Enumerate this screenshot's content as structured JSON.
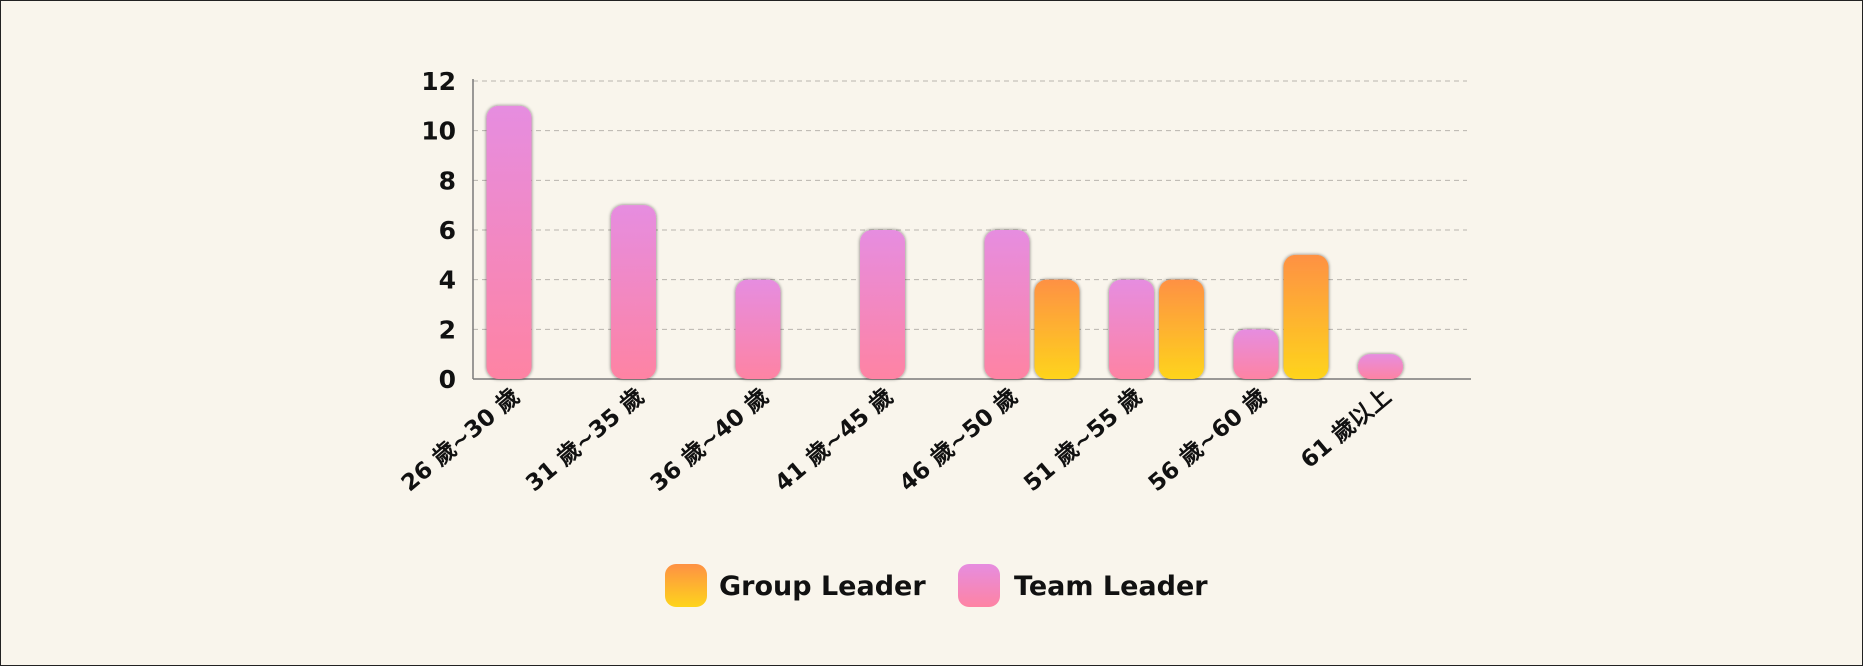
{
  "chart_data": {
    "type": "bar",
    "categories": [
      "26 歲~30 歲",
      "31 歲~35 歲",
      "36 歲~40 歲",
      "41 歲~45 歲",
      "46 歲~50 歲",
      "51 歲~55 歲",
      "56 歲~60 歲",
      "61 歲以上"
    ],
    "series": [
      {
        "name": "Team Leader",
        "values": [
          11,
          7,
          4,
          6,
          6,
          4,
          2,
          1
        ],
        "color_top": "#e68de0",
        "color_bottom": "#fe83a3"
      },
      {
        "name": "Group Leader",
        "values": [
          0,
          0,
          0,
          0,
          4,
          4,
          5,
          0
        ],
        "color_top": "#fe9144",
        "color_bottom": "#fed41c"
      }
    ],
    "yticks": [
      "0",
      "2",
      "4",
      "6",
      "8",
      "10",
      "12"
    ],
    "ylim": [
      0,
      12
    ],
    "grid": true,
    "legend_position": "bottom",
    "legend": [
      "Group Leader",
      "Team Leader"
    ],
    "title": "",
    "xlabel": "",
    "ylabel": ""
  },
  "colors": {
    "background": "#f9f5ec",
    "grid": "#b9b5ae",
    "axis": "#7a7a7a",
    "text": "#111111"
  }
}
